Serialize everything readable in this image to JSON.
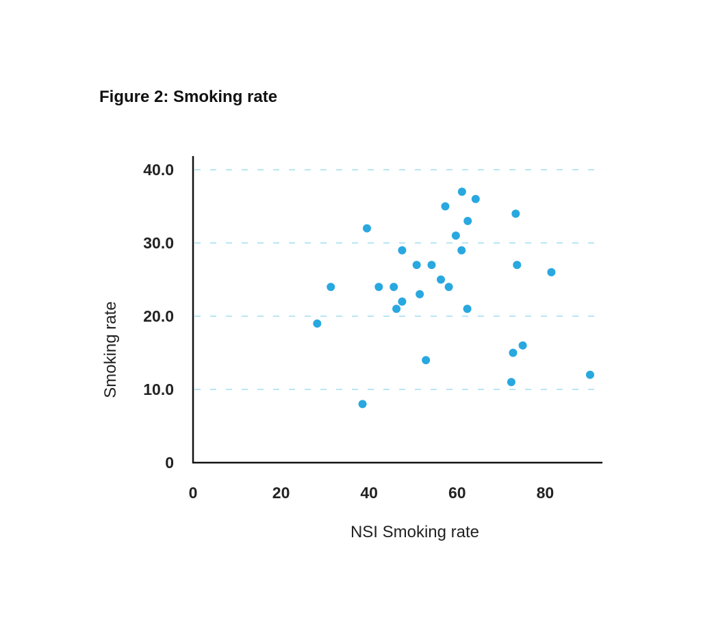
{
  "title": "Figure 2: Smoking rate",
  "colors": {
    "point": "#29a8e0",
    "gridline": "#b8e6f2",
    "axis": "#111111",
    "text": "#222222"
  },
  "chart_data": {
    "type": "scatter",
    "title": "Figure 2: Smoking rate",
    "xlabel": "NSI Smoking rate",
    "ylabel": "Smoking rate",
    "xlim": [
      0,
      93
    ],
    "ylim": [
      0,
      40
    ],
    "x_ticks": [
      0,
      20,
      40,
      60,
      80
    ],
    "x_tick_labels": [
      "0",
      "20",
      "40",
      "60",
      "80"
    ],
    "y_ticks": [
      0,
      10,
      20,
      30,
      40
    ],
    "y_tick_labels": [
      "0",
      "10.0",
      "20.0",
      "30.0",
      "40.0"
    ],
    "y_grid": true,
    "gridline_style": "dashed",
    "points": [
      {
        "x": 28.2,
        "y": 19
      },
      {
        "x": 31.3,
        "y": 24
      },
      {
        "x": 38.5,
        "y": 8
      },
      {
        "x": 39.5,
        "y": 32
      },
      {
        "x": 42.2,
        "y": 24
      },
      {
        "x": 45.6,
        "y": 24
      },
      {
        "x": 46.2,
        "y": 21
      },
      {
        "x": 47.5,
        "y": 22
      },
      {
        "x": 47.5,
        "y": 29
      },
      {
        "x": 50.8,
        "y": 27
      },
      {
        "x": 51.5,
        "y": 23
      },
      {
        "x": 52.9,
        "y": 14
      },
      {
        "x": 54.2,
        "y": 27
      },
      {
        "x": 56.3,
        "y": 25
      },
      {
        "x": 57.3,
        "y": 35
      },
      {
        "x": 58.1,
        "y": 24
      },
      {
        "x": 59.7,
        "y": 31
      },
      {
        "x": 61.0,
        "y": 29
      },
      {
        "x": 61.1,
        "y": 37
      },
      {
        "x": 62.3,
        "y": 21
      },
      {
        "x": 62.4,
        "y": 33
      },
      {
        "x": 64.2,
        "y": 36
      },
      {
        "x": 72.3,
        "y": 11
      },
      {
        "x": 72.7,
        "y": 15
      },
      {
        "x": 73.3,
        "y": 34
      },
      {
        "x": 73.6,
        "y": 27
      },
      {
        "x": 74.9,
        "y": 16
      },
      {
        "x": 81.4,
        "y": 26
      },
      {
        "x": 90.2,
        "y": 12
      }
    ]
  }
}
